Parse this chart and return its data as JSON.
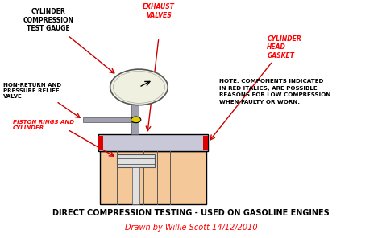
{
  "bg_color": "#ffffff",
  "title": "DIRECT COMPRESSION TESTING - USED ON GASOLINE ENGINES",
  "subtitle": "Drawn by Willie Scott 14/12/2010",
  "title_fontsize": 7.0,
  "subtitle_fontsize": 7.0,
  "note_text": "NOTE: COMPONENTS INDICATED\nIN RED ITALICS, ARE POSSIBLE\nREASONS FOR LOW COMPRESSION\nWHEN FAULTY OR WORN.",
  "colors": {
    "engine_body": "#f5c89a",
    "cylinder_head": "#c8c8d8",
    "gauge_face": "#f0f0e0",
    "stem_color": "#a0a0b0",
    "piston_color": "#e0e0e0",
    "red_dot": "#dd0000",
    "arrow_color": "#cc0000",
    "black": "#000000",
    "dark_gray": "#555555",
    "valve_yellow": "#ddcc00"
  }
}
